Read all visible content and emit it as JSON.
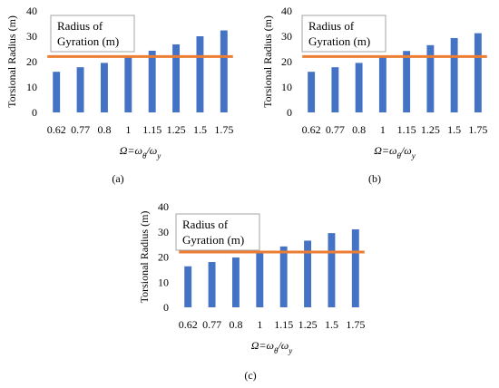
{
  "chart_data": [
    {
      "type": "bar",
      "panel_label": "(a)",
      "categories": [
        "0.62",
        "0.77",
        "0.8",
        "1",
        "1.15",
        "1.25",
        "1.5",
        "1.75"
      ],
      "values": [
        16,
        17.8,
        19.5,
        22,
        24.3,
        26.8,
        30,
        32.3
      ],
      "reference_line": {
        "value": 22,
        "label": "Radius of Gyration (m)",
        "color": "#ED7D31"
      },
      "ylabel": "Torsional Radius (m)",
      "xlabel": "Ω=ωθ/ωy",
      "ylim": [
        0,
        40
      ],
      "yticks": [
        0,
        10,
        20,
        30,
        40
      ],
      "bar_color": "#4472C4",
      "grid": false
    },
    {
      "type": "bar",
      "panel_label": "(b)",
      "categories": [
        "0.62",
        "0.77",
        "0.8",
        "1",
        "1.15",
        "1.25",
        "1.5",
        "1.75"
      ],
      "values": [
        16,
        17.8,
        19.5,
        22,
        24.2,
        26.5,
        29.3,
        31.2
      ],
      "reference_line": {
        "value": 22,
        "label": "Radius of Gyration (m)",
        "color": "#ED7D31"
      },
      "ylabel": "Torsional Radius (m)",
      "xlabel": "Ω=ωθ/ωy",
      "ylim": [
        0,
        40
      ],
      "yticks": [
        0,
        10,
        20,
        30,
        40
      ],
      "bar_color": "#4472C4",
      "grid": false
    },
    {
      "type": "bar",
      "panel_label": "(c)",
      "categories": [
        "0.62",
        "0.77",
        "0.8",
        "1",
        "1.15",
        "1.25",
        "1.5",
        "1.75"
      ],
      "values": [
        16.3,
        18,
        19.8,
        22,
        24.2,
        26.5,
        29.5,
        31
      ],
      "reference_line": {
        "value": 22,
        "label": "Radius of Gyration (m)",
        "color": "#ED7D31"
      },
      "ylabel": "Torsional Radius (m)",
      "xlabel": "Ω=ωθ/ωy",
      "ylim": [
        0,
        40
      ],
      "yticks": [
        0,
        10,
        20,
        30,
        40
      ],
      "bar_color": "#4472C4",
      "grid": false
    }
  ]
}
